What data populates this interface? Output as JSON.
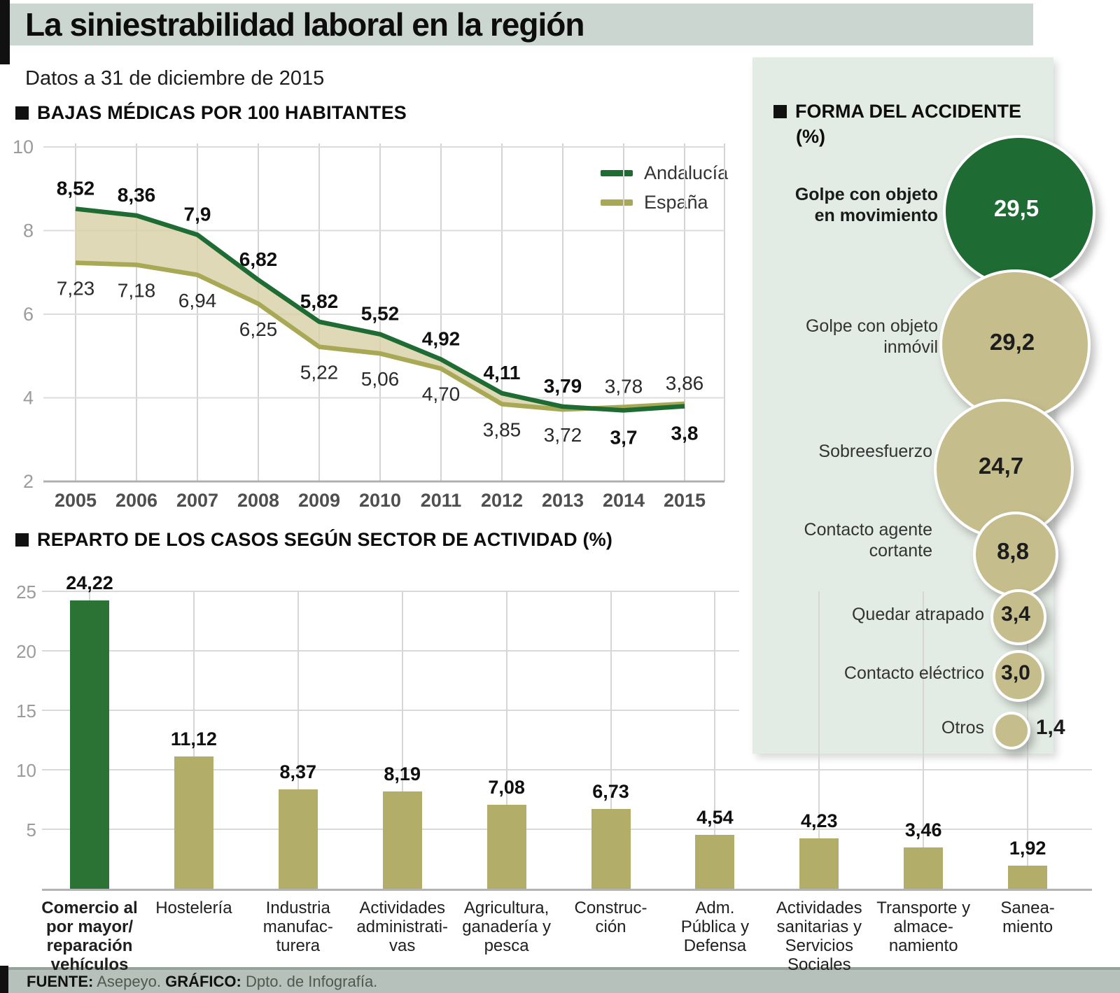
{
  "title": "La siniestrabilidad laboral en la región",
  "subtitle": "Datos a 31 de diciembre de 2015",
  "sections": {
    "line": "BAJAS MÉDICAS POR 100 HABITANTES",
    "bars": "REPARTO DE LOS CASOS SEGÚN SECTOR DE ACTIVIDAD (%)"
  },
  "colors": {
    "andalucia_green": "#1e6b33",
    "espana_olive": "#a9a855",
    "band_fill": "#d7d0a5",
    "bar_khaki": "#b3ad6a",
    "bar_highlight": "#2b7334",
    "panel_bg": "#e3ece4",
    "header_band": "#ccd6d0",
    "footer_band": "#b7c1bb"
  },
  "footer": {
    "source_label": "FUENTE:",
    "source": " Asepeyo. ",
    "graphic_label": "GRÁFICO:",
    "graphic": " Dpto. de Infografía."
  },
  "chart_data": [
    {
      "id": "bajas-medicas",
      "type": "line",
      "title": "BAJAS MÉDICAS POR 100 HABITANTES",
      "x": [
        2005,
        2006,
        2007,
        2008,
        2009,
        2010,
        2011,
        2012,
        2013,
        2014,
        2015
      ],
      "ylim": [
        2,
        10
      ],
      "yticks": [
        2,
        4,
        6,
        8,
        10
      ],
      "grid": true,
      "legend_position": "top-right",
      "band_between_series": true,
      "series": [
        {
          "name": "Andalucía",
          "color": "#1e6b33",
          "values": [
            8.52,
            8.36,
            7.9,
            6.82,
            5.82,
            5.52,
            4.92,
            4.11,
            3.79,
            3.7,
            3.8
          ],
          "labels": [
            "8,52",
            "8,36",
            "7,9",
            "6,82",
            "5,82",
            "5,52",
            "4,92",
            "4,11",
            "3,79",
            "3,7",
            "3,8"
          ]
        },
        {
          "name": "España",
          "color": "#a9a855",
          "values": [
            7.23,
            7.18,
            6.94,
            6.25,
            5.22,
            5.06,
            4.7,
            3.85,
            3.72,
            3.78,
            3.86
          ],
          "labels": [
            "7,23",
            "7,18",
            "6,94",
            "6,25",
            "5,22",
            "5,06",
            "4,70",
            "3,85",
            "3,72",
            "3,78",
            "3,86"
          ]
        }
      ]
    },
    {
      "id": "forma-del-accidente",
      "type": "bubble",
      "title": "FORMA DEL ACCIDENTE",
      "unit": "(%)",
      "items": [
        {
          "label": "Golpe con objeto en movimiento",
          "label_lines": [
            "Golpe con objeto",
            "en movimiento"
          ],
          "value": 29.5,
          "value_label": "29,5",
          "color": "#1e6b33",
          "text_color": "#ffffff",
          "emphasis": true
        },
        {
          "label": "Golpe con objeto inmóvil",
          "label_lines": [
            "Golpe con objeto",
            "inmóvil"
          ],
          "value": 29.2,
          "value_label": "29,2",
          "color": "#c6bd8d",
          "text_color": "#1d1d1d",
          "emphasis": false
        },
        {
          "label": "Sobreesfuerzo",
          "label_lines": [
            "Sobreesfuerzo"
          ],
          "value": 24.7,
          "value_label": "24,7",
          "color": "#c6bd8d",
          "text_color": "#1d1d1d",
          "emphasis": false
        },
        {
          "label": "Contacto agente cortante",
          "label_lines": [
            "Contacto agente",
            "cortante"
          ],
          "value": 8.8,
          "value_label": "8,8",
          "color": "#c6bd8d",
          "text_color": "#1d1d1d",
          "emphasis": false
        },
        {
          "label": "Quedar atrapado",
          "label_lines": [
            "Quedar atrapado"
          ],
          "value": 3.4,
          "value_label": "3,4",
          "color": "#c6bd8d",
          "text_color": "#1d1d1d",
          "emphasis": false
        },
        {
          "label": "Contacto eléctrico",
          "label_lines": [
            "Contacto eléctrico"
          ],
          "value": 3.0,
          "value_label": "3,0",
          "color": "#c6bd8d",
          "text_color": "#1d1d1d",
          "emphasis": false
        },
        {
          "label": "Otros",
          "label_lines": [
            "Otros"
          ],
          "value": 1.4,
          "value_label": "1,4",
          "color": "#c6bd8d",
          "text_color": "#1d1d1d",
          "emphasis": false,
          "value_outside": true
        }
      ]
    },
    {
      "id": "reparto-sectores",
      "type": "bar",
      "title": "REPARTO DE LOS CASOS SEGÚN SECTOR DE ACTIVIDAD (%)",
      "ylim": [
        0,
        25
      ],
      "yticks": [
        5,
        10,
        15,
        20,
        25
      ],
      "highlight_index": 0,
      "categories": [
        "Comercio al por mayor/ reparación vehículos",
        "Hostelería",
        "Industria manufacturera",
        "Actividades administrativas",
        "Agricultura, ganadería y pesca",
        "Construcción",
        "Adm. Pública y Defensa",
        "Actividades sanitarias y Servicios Sociales",
        "Transporte y almacenamiento",
        "Saneamiento"
      ],
      "category_lines": [
        [
          "Comercio al",
          "por mayor/",
          "reparación",
          "vehículos"
        ],
        [
          "Hostelería"
        ],
        [
          "Industria",
          "manufac-",
          "turera"
        ],
        [
          "Actividades",
          "administrati-",
          "vas"
        ],
        [
          "Agricultura,",
          "ganadería y",
          "pesca"
        ],
        [
          "Construc-",
          "ción"
        ],
        [
          "Adm.",
          "Pública y",
          "Defensa"
        ],
        [
          "Actividades",
          "sanitarias y",
          "Servicios",
          "Sociales"
        ],
        [
          "Transporte y",
          "almace-",
          "namiento"
        ],
        [
          "Sanea-",
          "miento"
        ]
      ],
      "values": [
        24.22,
        11.12,
        8.37,
        8.19,
        7.08,
        6.73,
        4.54,
        4.23,
        3.46,
        1.92
      ],
      "value_labels": [
        "24,22",
        "11,12",
        "8,37",
        "8,19",
        "7,08",
        "6,73",
        "4,54",
        "4,23",
        "3,46",
        "1,92"
      ]
    }
  ]
}
